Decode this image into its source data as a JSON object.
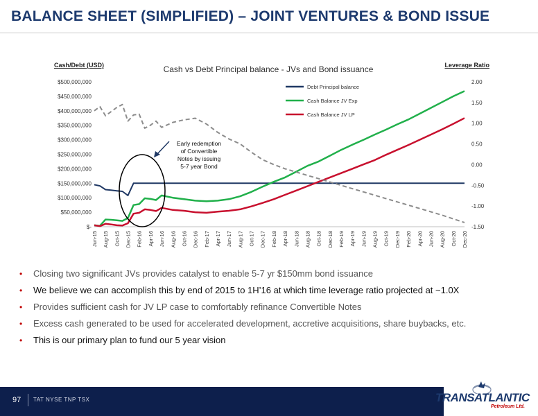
{
  "page": {
    "title": "BALANCE SHEET (SIMPLIFIED) – JOINT VENTURES & BOND ISSUE",
    "page_number": "97",
    "ticker": "TAT NYSE   TNP TSX",
    "logo_name": "TRANSATLANTIC",
    "logo_sub": "Petroleum Ltd."
  },
  "bullets": [
    "Closing two significant JVs provides catalyst to enable 5-7 yr $150mm bond issuance",
    "We believe we can accomplish this by end of 2015 to 1H’16 at which time leverage ratio projected at ~1.0X",
    "Provides sufficient cash for JV LP case to comfortably refinance Convertible Notes",
    "Excess cash generated to be used for accelerated development, accretive acquisitions, share buybacks, etc.",
    "This is our primary plan to fund our 5 year vision"
  ],
  "colors": {
    "debt": "#1f3864",
    "jv_exp": "#21b04b",
    "jv_lp": "#c8102e",
    "leverage": "#8c8c8c",
    "title": "#1d3a6e",
    "footer": "#0d1f4c"
  },
  "chart_data": {
    "type": "line",
    "title": "Cash vs Debt Principal balance - JVs and Bond issuance",
    "ylabel": "Cash/Debt (USD)",
    "y2label": "Leverage Ratio",
    "ylim": [
      0,
      500000000
    ],
    "y2lim": [
      -1.5,
      2.0
    ],
    "y_ticks": [
      "$-",
      "$50,000,000",
      "$100,000,000",
      "$150,000,000",
      "$200,000,000",
      "$250,000,000",
      "$300,000,000",
      "$350,000,000",
      "$400,000,000",
      "$450,000,000",
      "$500,000,000"
    ],
    "y2_ticks": [
      "-1.50",
      "-1.00",
      "-0.50",
      "0.00",
      "0.50",
      "1.00",
      "1.50",
      "2.00"
    ],
    "x_tick_labels": [
      "Jun-15",
      "Aug-15",
      "Oct-15",
      "Dec-15",
      "Feb-16",
      "Apr-16",
      "Jun-16",
      "Aug-16",
      "Oct-16",
      "Dec-16",
      "Feb-17",
      "Apr-17",
      "Jun-17",
      "Aug-17",
      "Oct-17",
      "Dec-17",
      "Feb-18",
      "Apr-18",
      "Jun-18",
      "Aug-18",
      "Oct-18",
      "Dec-18",
      "Feb-19",
      "Apr-19",
      "Jun-19",
      "Aug-19",
      "Oct-19",
      "Dec-19",
      "Feb-20",
      "Apr-20",
      "Jun-20",
      "Aug-20",
      "Oct-20",
      "Dec-20"
    ],
    "x_start_month": "Jun-15",
    "grid": false,
    "legend": "top-right",
    "annotation": [
      "Early redemption",
      "of Convertible",
      "Notes by issuing",
      "5-7 year Bond"
    ],
    "series": [
      {
        "name": "Debt Principal balance",
        "axis": "left",
        "points": [
          [
            "Jun-15",
            145000000
          ],
          [
            "Jul-15",
            141000000
          ],
          [
            "Aug-15",
            128000000
          ],
          [
            "Sep-15",
            126000000
          ],
          [
            "Oct-15",
            124000000
          ],
          [
            "Nov-15",
            122000000
          ],
          [
            "Dec-15",
            108000000
          ],
          [
            "Jan-16",
            150000000
          ],
          [
            "Feb-16",
            150000000
          ],
          [
            "Dec-20",
            150000000
          ]
        ]
      },
      {
        "name": "Cash Balance JV Exp",
        "axis": "left",
        "points": [
          [
            "Jun-15",
            5000000
          ],
          [
            "Jul-15",
            3000000
          ],
          [
            "Aug-15",
            25000000
          ],
          [
            "Sep-15",
            24000000
          ],
          [
            "Oct-15",
            22000000
          ],
          [
            "Nov-15",
            20000000
          ],
          [
            "Dec-15",
            30000000
          ],
          [
            "Jan-16",
            75000000
          ],
          [
            "Feb-16",
            78000000
          ],
          [
            "Mar-16",
            98000000
          ],
          [
            "Apr-16",
            96000000
          ],
          [
            "May-16",
            92000000
          ],
          [
            "Jun-16",
            108000000
          ],
          [
            "Aug-16",
            100000000
          ],
          [
            "Oct-16",
            95000000
          ],
          [
            "Dec-16",
            90000000
          ],
          [
            "Feb-17",
            88000000
          ],
          [
            "Apr-17",
            90000000
          ],
          [
            "Jun-17",
            95000000
          ],
          [
            "Aug-17",
            105000000
          ],
          [
            "Oct-17",
            120000000
          ],
          [
            "Dec-17",
            138000000
          ],
          [
            "Feb-18",
            155000000
          ],
          [
            "Apr-18",
            170000000
          ],
          [
            "Jun-18",
            190000000
          ],
          [
            "Aug-18",
            210000000
          ],
          [
            "Oct-18",
            225000000
          ],
          [
            "Dec-18",
            245000000
          ],
          [
            "Feb-19",
            265000000
          ],
          [
            "Apr-19",
            283000000
          ],
          [
            "Jun-19",
            300000000
          ],
          [
            "Aug-19",
            318000000
          ],
          [
            "Oct-19",
            335000000
          ],
          [
            "Dec-19",
            353000000
          ],
          [
            "Feb-20",
            370000000
          ],
          [
            "Apr-20",
            390000000
          ],
          [
            "Jun-20",
            410000000
          ],
          [
            "Aug-20",
            430000000
          ],
          [
            "Oct-20",
            450000000
          ],
          [
            "Dec-20",
            468000000
          ]
        ]
      },
      {
        "name": "Cash Balance JV LP",
        "axis": "left",
        "points": [
          [
            "Jun-15",
            5000000
          ],
          [
            "Jul-15",
            2000000
          ],
          [
            "Aug-15",
            10000000
          ],
          [
            "Sep-15",
            8000000
          ],
          [
            "Oct-15",
            5000000
          ],
          [
            "Nov-15",
            4000000
          ],
          [
            "Dec-15",
            12000000
          ],
          [
            "Jan-16",
            45000000
          ],
          [
            "Feb-16",
            48000000
          ],
          [
            "Mar-16",
            60000000
          ],
          [
            "Apr-16",
            58000000
          ],
          [
            "May-16",
            54000000
          ],
          [
            "Jun-16",
            65000000
          ],
          [
            "Aug-16",
            58000000
          ],
          [
            "Oct-16",
            55000000
          ],
          [
            "Dec-16",
            50000000
          ],
          [
            "Feb-17",
            48000000
          ],
          [
            "Apr-17",
            52000000
          ],
          [
            "Jun-17",
            55000000
          ],
          [
            "Aug-17",
            60000000
          ],
          [
            "Oct-17",
            70000000
          ],
          [
            "Dec-17",
            82000000
          ],
          [
            "Feb-18",
            95000000
          ],
          [
            "Apr-18",
            110000000
          ],
          [
            "Jun-18",
            125000000
          ],
          [
            "Aug-18",
            140000000
          ],
          [
            "Oct-18",
            155000000
          ],
          [
            "Dec-18",
            170000000
          ],
          [
            "Feb-19",
            185000000
          ],
          [
            "Apr-19",
            200000000
          ],
          [
            "Jun-19",
            215000000
          ],
          [
            "Aug-19",
            230000000
          ],
          [
            "Oct-19",
            248000000
          ],
          [
            "Dec-19",
            265000000
          ],
          [
            "Feb-20",
            282000000
          ],
          [
            "Apr-20",
            300000000
          ],
          [
            "Jun-20",
            318000000
          ],
          [
            "Aug-20",
            336000000
          ],
          [
            "Oct-20",
            355000000
          ],
          [
            "Dec-20",
            375000000
          ]
        ]
      },
      {
        "name": "Leverage Ratio",
        "axis": "right",
        "dashed": true,
        "points": [
          [
            "Jun-15",
            1.3
          ],
          [
            "Jul-15",
            1.4
          ],
          [
            "Aug-15",
            1.18
          ],
          [
            "Sep-15",
            1.28
          ],
          [
            "Oct-15",
            1.38
          ],
          [
            "Nov-15",
            1.45
          ],
          [
            "Dec-15",
            1.05
          ],
          [
            "Jan-16",
            1.2
          ],
          [
            "Feb-16",
            1.22
          ],
          [
            "Mar-16",
            0.88
          ],
          [
            "Apr-16",
            0.95
          ],
          [
            "May-16",
            1.05
          ],
          [
            "Jun-16",
            0.9
          ],
          [
            "Aug-16",
            1.02
          ],
          [
            "Oct-16",
            1.08
          ],
          [
            "Dec-16",
            1.12
          ],
          [
            "Feb-17",
            0.98
          ],
          [
            "Apr-17",
            0.78
          ],
          [
            "Jun-17",
            0.62
          ],
          [
            "Aug-17",
            0.5
          ],
          [
            "Oct-17",
            0.3
          ],
          [
            "Dec-17",
            0.12
          ],
          [
            "Feb-18",
            0.0
          ],
          [
            "Apr-18",
            -0.1
          ],
          [
            "Jun-18",
            -0.18
          ],
          [
            "Aug-18",
            -0.26
          ],
          [
            "Oct-18",
            -0.34
          ],
          [
            "Dec-18",
            -0.42
          ],
          [
            "Feb-19",
            -0.5
          ],
          [
            "Apr-19",
            -0.58
          ],
          [
            "Jun-19",
            -0.66
          ],
          [
            "Aug-19",
            -0.74
          ],
          [
            "Oct-19",
            -0.82
          ],
          [
            "Dec-19",
            -0.9
          ],
          [
            "Feb-20",
            -0.98
          ],
          [
            "Apr-20",
            -1.06
          ],
          [
            "Jun-20",
            -1.14
          ],
          [
            "Aug-20",
            -1.22
          ],
          [
            "Oct-20",
            -1.31
          ],
          [
            "Dec-20",
            -1.4
          ]
        ]
      }
    ]
  }
}
